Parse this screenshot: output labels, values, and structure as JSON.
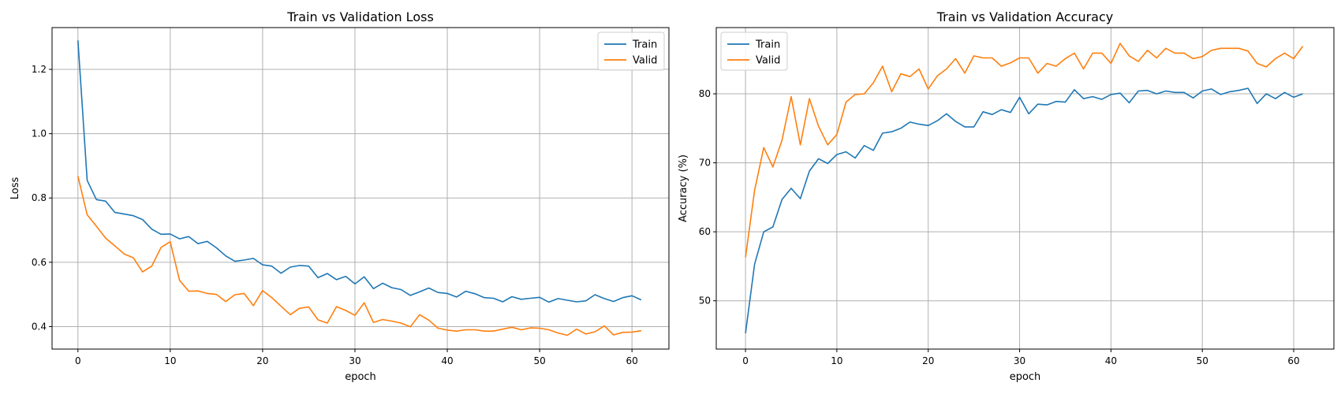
{
  "colors": {
    "train": "#1f77b4",
    "valid": "#ff7f0e"
  },
  "chart_data": [
    {
      "type": "line",
      "title": "Train vs Validation Loss",
      "xlabel": "epoch",
      "ylabel": "Loss",
      "xlim": [
        -2.8,
        64.0
      ],
      "ylim": [
        0.33,
        1.33
      ],
      "xticks": [
        0,
        10,
        20,
        30,
        40,
        50,
        60
      ],
      "yticks": [
        0.4,
        0.6,
        0.8,
        1.0,
        1.2
      ],
      "ytick_labels": [
        "0.4",
        "0.6",
        "0.8",
        "1.0",
        "1.2"
      ],
      "grid": true,
      "legend": "top-right",
      "x": [
        0,
        1,
        2,
        3,
        4,
        5,
        6,
        7,
        8,
        9,
        10,
        11,
        12,
        13,
        14,
        15,
        16,
        17,
        18,
        19,
        20,
        21,
        22,
        23,
        24,
        25,
        26,
        27,
        28,
        29,
        30,
        31,
        32,
        33,
        34,
        35,
        36,
        37,
        38,
        39,
        40,
        41,
        42,
        43,
        44,
        45,
        46,
        47,
        48,
        49,
        50,
        51,
        52,
        53,
        54,
        55,
        56,
        57,
        58,
        59,
        60,
        61
      ],
      "series": [
        {
          "name": "Train",
          "color": "#1f77b4",
          "values": [
            1.29,
            0.855,
            0.795,
            0.79,
            0.755,
            0.75,
            0.745,
            0.733,
            0.703,
            0.687,
            0.688,
            0.673,
            0.68,
            0.658,
            0.665,
            0.645,
            0.62,
            0.603,
            0.607,
            0.612,
            0.592,
            0.588,
            0.566,
            0.585,
            0.59,
            0.588,
            0.552,
            0.565,
            0.546,
            0.556,
            0.533,
            0.555,
            0.518,
            0.535,
            0.521,
            0.515,
            0.497,
            0.508,
            0.52,
            0.506,
            0.503,
            0.492,
            0.51,
            0.502,
            0.49,
            0.488,
            0.477,
            0.493,
            0.485,
            0.488,
            0.491,
            0.476,
            0.487,
            0.482,
            0.477,
            0.48,
            0.499,
            0.487,
            0.478,
            0.49,
            0.496,
            0.483
          ]
        },
        {
          "name": "Valid",
          "color": "#ff7f0e",
          "values": [
            0.868,
            0.748,
            0.712,
            0.675,
            0.651,
            0.626,
            0.614,
            0.57,
            0.588,
            0.646,
            0.664,
            0.544,
            0.51,
            0.511,
            0.503,
            0.5,
            0.478,
            0.499,
            0.503,
            0.465,
            0.512,
            0.49,
            0.463,
            0.437,
            0.457,
            0.461,
            0.421,
            0.411,
            0.462,
            0.45,
            0.435,
            0.474,
            0.413,
            0.422,
            0.417,
            0.411,
            0.399,
            0.437,
            0.42,
            0.395,
            0.389,
            0.386,
            0.39,
            0.39,
            0.386,
            0.386,
            0.392,
            0.398,
            0.39,
            0.396,
            0.395,
            0.39,
            0.38,
            0.373,
            0.392,
            0.377,
            0.384,
            0.402,
            0.374,
            0.382,
            0.383,
            0.387
          ]
        }
      ]
    },
    {
      "type": "line",
      "title": "Train vs Validation Accuracy",
      "xlabel": "epoch",
      "ylabel": "Accuracy (%)",
      "xlim": [
        -3.2,
        64.4
      ],
      "ylim": [
        43.0,
        89.6
      ],
      "xticks": [
        0,
        10,
        20,
        30,
        40,
        50,
        60
      ],
      "yticks": [
        50,
        60,
        70,
        80
      ],
      "ytick_labels": [
        "50",
        "60",
        "70",
        "80"
      ],
      "grid": true,
      "legend": "top-left",
      "x": [
        0,
        1,
        2,
        3,
        4,
        5,
        6,
        7,
        8,
        9,
        10,
        11,
        12,
        13,
        14,
        15,
        16,
        17,
        18,
        19,
        20,
        21,
        22,
        23,
        24,
        25,
        26,
        27,
        28,
        29,
        30,
        31,
        32,
        33,
        34,
        35,
        36,
        37,
        38,
        39,
        40,
        41,
        42,
        43,
        44,
        45,
        46,
        47,
        48,
        49,
        50,
        51,
        52,
        53,
        54,
        55,
        56,
        57,
        58,
        59,
        60,
        61
      ],
      "series": [
        {
          "name": "Train",
          "color": "#1f77b4",
          "values": [
            45.3,
            55.3,
            60.0,
            60.7,
            64.7,
            66.3,
            64.8,
            68.8,
            70.6,
            69.9,
            71.2,
            71.6,
            70.7,
            72.5,
            71.8,
            74.3,
            74.5,
            75.0,
            75.9,
            75.6,
            75.4,
            76.1,
            77.1,
            76.0,
            75.2,
            75.2,
            77.4,
            77.0,
            77.7,
            77.3,
            79.5,
            77.1,
            78.5,
            78.4,
            78.9,
            78.8,
            80.6,
            79.3,
            79.6,
            79.2,
            79.9,
            80.1,
            78.7,
            80.4,
            80.5,
            80.0,
            80.4,
            80.2,
            80.2,
            79.4,
            80.4,
            80.7,
            79.9,
            80.3,
            80.5,
            80.8,
            78.6,
            80.0,
            79.3,
            80.2,
            79.5,
            80.0
          ]
        },
        {
          "name": "Valid",
          "color": "#ff7f0e",
          "values": [
            56.3,
            66.0,
            72.2,
            69.4,
            73.3,
            79.6,
            72.6,
            79.3,
            75.3,
            72.6,
            74.1,
            78.8,
            79.9,
            80.0,
            81.6,
            84.0,
            80.3,
            82.9,
            82.5,
            83.6,
            80.7,
            82.6,
            83.6,
            85.1,
            83.0,
            85.5,
            85.2,
            85.2,
            84.0,
            84.5,
            85.2,
            85.2,
            83.0,
            84.4,
            84.0,
            85.1,
            85.9,
            83.6,
            85.9,
            85.9,
            84.4,
            87.3,
            85.5,
            84.7,
            86.3,
            85.2,
            86.6,
            85.9,
            85.9,
            85.1,
            85.4,
            86.3,
            86.6,
            86.6,
            86.6,
            86.2,
            84.4,
            83.9,
            85.1,
            85.9,
            85.1,
            86.9
          ]
        }
      ]
    }
  ]
}
